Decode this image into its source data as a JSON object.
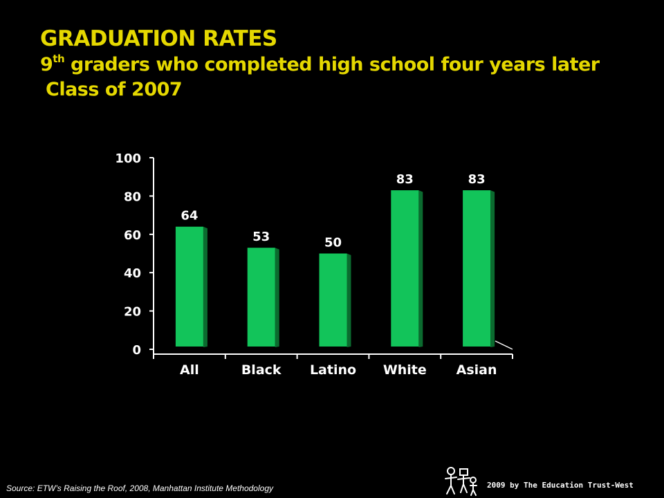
{
  "title": {
    "line1": "GRADUATION RATES",
    "line2_before_sup": "9",
    "line2_sup": "th",
    "line2_after_sup": " graders who completed high school four years later",
    "line3": "Class of 2007"
  },
  "chart_data": {
    "type": "bar",
    "categories": [
      "All",
      "Black",
      "Latino",
      "White",
      "Asian"
    ],
    "values": [
      64,
      53,
      50,
      83,
      83
    ],
    "data_labels": [
      "64",
      "53",
      "50",
      "83",
      "83"
    ],
    "ylim": [
      0,
      100
    ],
    "yticks": [
      0,
      20,
      40,
      60,
      80,
      100
    ],
    "ytick_labels": [
      "0",
      "20",
      "40",
      "60",
      "80",
      "100"
    ],
    "xlabel": "",
    "ylabel": "",
    "grid": false,
    "legend": "none",
    "bar_color": "#12c45a",
    "bar_side_color": "#0b6b2f"
  },
  "footer": {
    "source": "Source: ETW’s Raising the Roof, 2008, Manhattan Institute Methodology",
    "credit": "2009 by The Education Trust-West"
  },
  "logo_icon": "education-trust-figures-icon"
}
